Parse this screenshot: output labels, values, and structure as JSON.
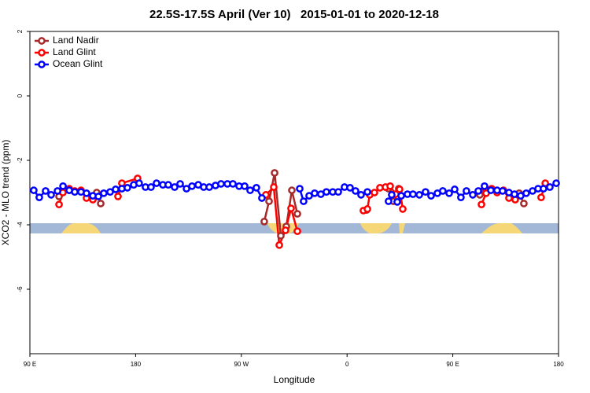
{
  "chart_data": {
    "type": "line",
    "title": "22.5S-17.5S April (Ver 10)   2015-01-01 to 2020-12-18",
    "x_label": "Longitude",
    "y_label": "XCO2 - MLO trend (ppm)",
    "xlim": [
      90,
      540
    ],
    "xticks": [
      {
        "value": 90,
        "label": "90 E"
      },
      {
        "value": 180,
        "label": "180"
      },
      {
        "value": 270,
        "label": "90 W"
      },
      {
        "value": 360,
        "label": "0"
      },
      {
        "value": 450,
        "label": "90 E"
      },
      {
        "value": 540,
        "label": "180"
      }
    ],
    "ylim": [
      -8,
      2
    ],
    "yticks": [
      -6,
      -4,
      -2,
      0,
      2
    ],
    "grid": false,
    "legend": "top-left",
    "series": [
      {
        "name": "Land Nadir",
        "color": "#a52a2a",
        "x": [
          114.8,
          119.5,
          123.5,
          null,
          146.9,
          150.3,
          null,
          289.5,
          293.6,
          298.3,
          303.6,
          308.3,
          313.0,
          317.7,
          null,
          376.6,
          null,
          395.3,
          399.4,
          403.4,
          404.0,
          null,
          473.0,
          477.7,
          482.4,
          null,
          506.5,
          510.5
        ],
        "values": [
          -3.12,
          -2.88,
          -2.93,
          null,
          -3.0,
          -3.34,
          null,
          -3.9,
          -3.27,
          -2.39,
          -4.34,
          -4.05,
          -2.93,
          -3.66,
          null,
          -3.54,
          null,
          -2.88,
          -3.27,
          -3.17,
          -2.88,
          null,
          -3.07,
          -2.88,
          -2.9,
          null,
          -3.02,
          -3.34
        ]
      },
      {
        "name": "Land Glint",
        "color": "#ff0000",
        "x": [
          114.8,
          118.1,
          123.5,
          128.2,
          133.5,
          138.2,
          143.6,
          null,
          165.0,
          168.3,
          181.7,
          null,
          290.9,
          297.6,
          302.3,
          307.6,
          312.3,
          317.7,
          null,
          373.9,
          377.3,
          379.3,
          383.3,
          388.0,
          392.7,
          396.7,
          401.4,
          404.7,
          407.4,
          null,
          474.4,
          478.4,
          483.1,
          487.7,
          493.1,
          497.8,
          503.1,
          null,
          525.2,
          528.7
        ],
        "values": [
          -3.37,
          -3.0,
          -2.88,
          -2.95,
          -2.93,
          -3.17,
          -3.22,
          null,
          -3.12,
          -2.71,
          -2.56,
          null,
          -3.07,
          -2.83,
          -4.63,
          -4.17,
          -3.49,
          -4.2,
          null,
          -3.56,
          -3.51,
          -3.07,
          -3.0,
          -2.85,
          -2.83,
          -2.8,
          -3.05,
          -2.9,
          -3.51,
          null,
          -3.37,
          -3.02,
          -2.88,
          -3.0,
          -2.93,
          -3.17,
          -3.22,
          null,
          -3.15,
          -2.71
        ]
      },
      {
        "name": "Ocean Glint",
        "color": "#0000ff",
        "x": [
          93.3,
          98.0,
          103.4,
          108.1,
          113.5,
          118.2,
          123.5,
          128.2,
          133.5,
          138.2,
          143.6,
          148.3,
          152.9,
          158.3,
          163.0,
          168.3,
          173.0,
          178.4,
          183.0,
          188.4,
          193.1,
          197.8,
          203.2,
          207.8,
          213.2,
          217.9,
          223.3,
          228.0,
          233.3,
          238.0,
          242.7,
          248.0,
          252.7,
          258.1,
          262.8,
          268.1,
          272.8,
          277.5,
          282.8,
          287.5,
          null,
          319.7,
          323.0,
          327.7,
          332.4,
          337.7,
          342.4,
          347.8,
          352.5,
          357.8,
          362.5,
          367.2,
          371.9,
          377.3,
          null,
          395.3,
          398.0,
          402.7,
          406.1,
          411.4,
          416.1,
          421.5,
          426.8,
          431.5,
          436.9,
          441.5,
          446.9,
          451.6,
          456.9,
          461.6,
          467.0,
          471.7,
          477.0,
          482.4,
          487.7,
          492.4,
          497.8,
          502.5,
          507.8,
          512.5,
          517.9,
          522.6,
          527.2,
          532.6,
          538.0
        ],
        "values": [
          -2.93,
          -3.15,
          -2.95,
          -3.07,
          -2.95,
          -2.8,
          -2.93,
          -2.98,
          -2.98,
          -3.02,
          -3.1,
          -3.12,
          -3.02,
          -2.98,
          -2.9,
          -2.88,
          -2.85,
          -2.76,
          -2.71,
          -2.83,
          -2.83,
          -2.71,
          -2.76,
          -2.76,
          -2.83,
          -2.73,
          -2.88,
          -2.8,
          -2.76,
          -2.83,
          -2.83,
          -2.78,
          -2.73,
          -2.73,
          -2.73,
          -2.8,
          -2.8,
          -2.93,
          -2.85,
          -3.17,
          null,
          -2.88,
          -3.27,
          -3.1,
          -3.02,
          -3.05,
          -2.98,
          -2.98,
          -2.98,
          -2.83,
          -2.85,
          -2.95,
          -3.07,
          -2.98,
          null,
          -3.27,
          -3.07,
          -3.29,
          -3.1,
          -3.05,
          -3.05,
          -3.07,
          -2.98,
          -3.1,
          -3.02,
          -2.95,
          -3.02,
          -2.9,
          -3.15,
          -2.95,
          -3.07,
          -2.95,
          -2.8,
          -2.93,
          -2.93,
          -2.95,
          -3.0,
          -3.05,
          -3.1,
          -3.02,
          -2.95,
          -2.88,
          -2.88,
          -2.83,
          -2.71
        ]
      }
    ]
  }
}
